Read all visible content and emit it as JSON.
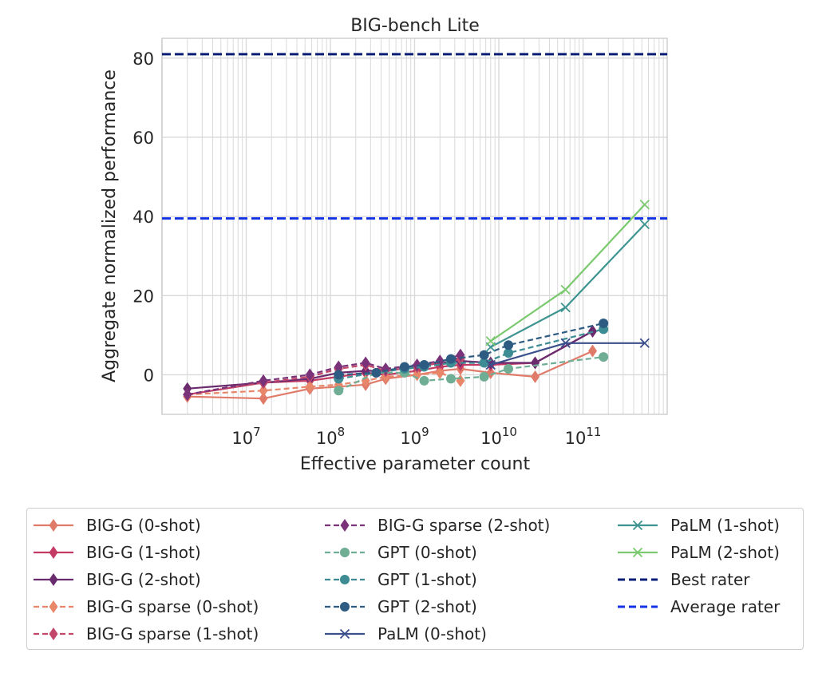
{
  "chart_data": {
    "type": "line",
    "title": "BIG-bench Lite",
    "xlabel": "Effective parameter count",
    "ylabel": "Aggregate normalized performance",
    "xscale": "log",
    "xlim": [
      1000000,
      1000000000000
    ],
    "ylim": [
      -10,
      85
    ],
    "yticks": [
      {
        "value": 0,
        "label": "0"
      },
      {
        "value": 20,
        "label": "20"
      },
      {
        "value": 40,
        "label": "40"
      },
      {
        "value": 60,
        "label": "60"
      },
      {
        "value": 80,
        "label": "80"
      }
    ],
    "xticks": [
      {
        "value": 10000000,
        "base": "10",
        "exp": "7"
      },
      {
        "value": 100000000,
        "base": "10",
        "exp": "8"
      },
      {
        "value": 1000000000,
        "base": "10",
        "exp": "9"
      },
      {
        "value": 10000000000,
        "base": "10",
        "exp": "10"
      },
      {
        "value": 100000000000,
        "base": "10",
        "exp": "11"
      }
    ],
    "grid": true,
    "legend_placement": "below",
    "series": [
      {
        "name": "BIG-G (0-shot)",
        "color": "#e07b6a",
        "dash": "solid",
        "marker": "diamond",
        "x": [
          2000000,
          16000000,
          57000000,
          125000000,
          262000000,
          453000000,
          1070000000,
          2000000000,
          3500000000,
          8000000000,
          27000000000,
          130000000000
        ],
        "y": [
          -5.5,
          -6,
          -3.5,
          -3,
          -2.5,
          -1,
          0,
          1,
          1.5,
          0.5,
          -0.5,
          6
        ]
      },
      {
        "name": "BIG-G (1-shot)",
        "color": "#c33b64",
        "dash": "solid",
        "marker": "diamond",
        "x": [
          2000000,
          16000000,
          57000000,
          125000000,
          262000000,
          453000000,
          1070000000,
          2000000000,
          3500000000,
          8000000000,
          27000000000,
          130000000000
        ],
        "y": [
          -5,
          -2,
          -1.5,
          -0.5,
          0.5,
          0,
          1,
          2,
          2.5,
          2.5,
          3,
          11
        ]
      },
      {
        "name": "BIG-G (2-shot)",
        "color": "#6a2a6e",
        "dash": "solid",
        "marker": "diamond",
        "x": [
          2000000,
          16000000,
          57000000,
          125000000,
          262000000,
          453000000,
          1070000000,
          2000000000,
          3500000000,
          8000000000,
          27000000000,
          130000000000
        ],
        "y": [
          -3.5,
          -2,
          -1,
          0.5,
          1,
          1,
          2,
          3,
          3.5,
          3,
          3,
          11
        ]
      },
      {
        "name": "BIG-G sparse (0-shot)",
        "color": "#e8866a",
        "dash": "dashed",
        "marker": "diamond",
        "x": [
          2000000,
          16000000,
          57000000,
          125000000,
          262000000,
          453000000,
          1070000000,
          2000000000,
          3500000000
        ],
        "y": [
          -5,
          -4,
          -3,
          -2.5,
          -1.5,
          -0.5,
          0,
          0.5,
          -1.5
        ]
      },
      {
        "name": "BIG-G sparse (1-shot)",
        "color": "#c2476a",
        "dash": "dashed",
        "marker": "diamond",
        "x": [
          2000000,
          16000000,
          57000000,
          125000000,
          262000000,
          453000000,
          1070000000,
          2000000000,
          3500000000
        ],
        "y": [
          -5,
          -2,
          -0.5,
          1.5,
          2.5,
          1,
          2,
          3,
          4
        ]
      },
      {
        "name": "BIG-G sparse (2-shot)",
        "color": "#7a3278",
        "dash": "dashed",
        "marker": "diamond",
        "x": [
          2000000,
          16000000,
          57000000,
          125000000,
          262000000,
          453000000,
          1070000000,
          2000000000,
          3500000000
        ],
        "y": [
          -5,
          -1.5,
          0,
          2,
          3,
          1.5,
          2.5,
          3.5,
          5
        ]
      },
      {
        "name": "GPT (0-shot)",
        "color": "#6fae95",
        "dash": "dashed",
        "marker": "circle",
        "x": [
          125000000,
          350000000,
          760000000,
          1300000000,
          2700000000,
          6700000000,
          13000000000,
          175000000000
        ],
        "y": [
          -4,
          0.5,
          0.5,
          -1.5,
          -1,
          -0.5,
          1.5,
          4.5
        ]
      },
      {
        "name": "GPT (1-shot)",
        "color": "#3d8c94",
        "dash": "dashed",
        "marker": "circle",
        "x": [
          125000000,
          350000000,
          760000000,
          1300000000,
          2700000000,
          6700000000,
          13000000000,
          175000000000
        ],
        "y": [
          -1,
          0.5,
          1.5,
          2,
          3,
          3,
          5.5,
          11.5
        ]
      },
      {
        "name": "GPT (2-shot)",
        "color": "#2d5b82",
        "dash": "dashed",
        "marker": "circle",
        "x": [
          125000000,
          350000000,
          760000000,
          1300000000,
          2700000000,
          6700000000,
          13000000000,
          175000000000
        ],
        "y": [
          0,
          0.5,
          2,
          2.5,
          4,
          5,
          7.5,
          13
        ]
      },
      {
        "name": "PaLM (0-shot)",
        "color": "#3b4f8c",
        "dash": "solid",
        "marker": "x",
        "x": [
          8000000000,
          62000000000,
          540000000000
        ],
        "y": [
          2.5,
          8,
          8
        ]
      },
      {
        "name": "PaLM (1-shot)",
        "color": "#3d9490",
        "dash": "solid",
        "marker": "x",
        "x": [
          8000000000,
          62000000000,
          540000000000
        ],
        "y": [
          7,
          17,
          38
        ]
      },
      {
        "name": "PaLM (2-shot)",
        "color": "#7bc96f",
        "dash": "solid",
        "marker": "x",
        "x": [
          8000000000,
          62000000000,
          540000000000
        ],
        "y": [
          8.5,
          21.5,
          43
        ]
      },
      {
        "name": "Best rater",
        "color": "#0a1e78",
        "dash": "dashed",
        "marker": "none",
        "hline": 81
      },
      {
        "name": "Average rater",
        "color": "#1432e6",
        "dash": "dashed",
        "marker": "none",
        "hline": 39.5
      }
    ]
  }
}
